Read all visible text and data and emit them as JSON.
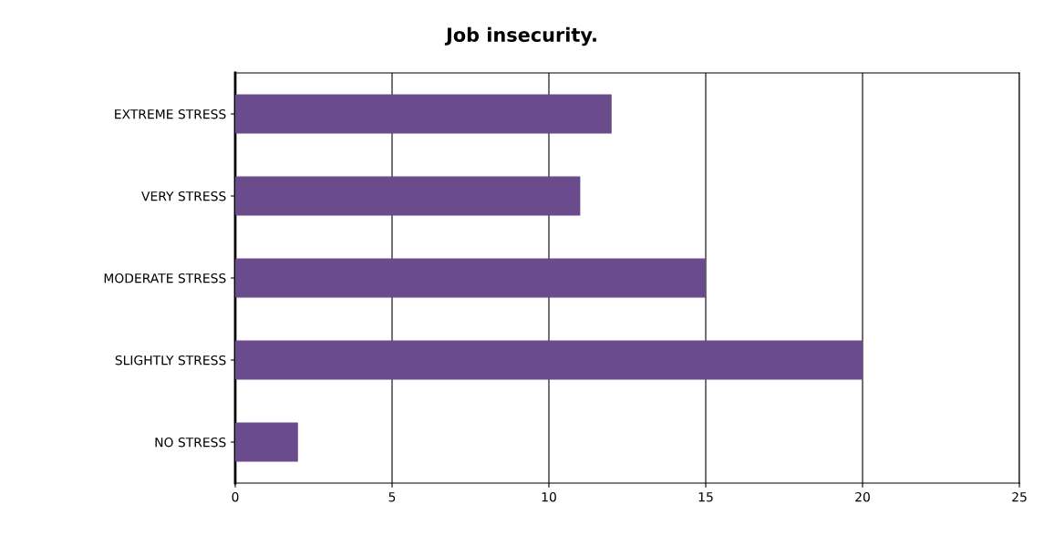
{
  "chart_data": {
    "type": "bar",
    "orientation": "horizontal",
    "title": "Job insecurity.",
    "categories": [
      "EXTREME STRESS",
      "VERY STRESS",
      "MODERATE STRESS",
      "SLIGHTLY STRESS",
      "NO STRESS"
    ],
    "values": [
      12,
      11,
      15,
      20,
      2
    ],
    "color": "#6a4c8c",
    "xlim": [
      0,
      25
    ],
    "xticks": [
      0,
      5,
      10,
      15,
      20,
      25
    ],
    "grid": "x",
    "legend": false
  }
}
